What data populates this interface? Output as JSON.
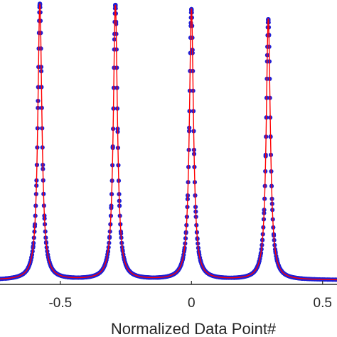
{
  "chart_data": {
    "type": "line",
    "xlabel": "Normalized Data Point#",
    "ylabel": "",
    "x_ticks": [
      {
        "value": -0.5,
        "label": "-0.5"
      },
      {
        "value": 0,
        "label": "0"
      },
      {
        "value": 0.5,
        "label": "0.5"
      }
    ],
    "xlim": [
      -0.73,
      0.555
    ],
    "ylim": [
      -0.015,
      1.0
    ],
    "grid": false,
    "legend": "none",
    "colors": {
      "fit_line": "#ff0000",
      "markers": "#1f1fd6",
      "axes": "#262626"
    },
    "series": [
      {
        "style": "line",
        "color": "#ff0000",
        "peaks": [
          {
            "x": -0.578,
            "height": 0.985,
            "width": 0.0095
          },
          {
            "x": -0.29,
            "height": 0.98,
            "width": 0.0095
          },
          {
            "x": 0.0,
            "height": 0.965,
            "width": 0.0095
          },
          {
            "x": 0.293,
            "height": 0.93,
            "width": 0.0095
          }
        ]
      },
      {
        "style": "markers",
        "color": "#1f1fd6",
        "peaks": [
          {
            "x": -0.578,
            "height": 0.985,
            "width": 0.0095
          },
          {
            "x": -0.29,
            "height": 0.98,
            "width": 0.0095
          },
          {
            "x": 0.0,
            "height": 0.965,
            "width": 0.0095
          },
          {
            "x": 0.293,
            "height": 0.93,
            "width": 0.0095
          }
        ]
      }
    ]
  }
}
